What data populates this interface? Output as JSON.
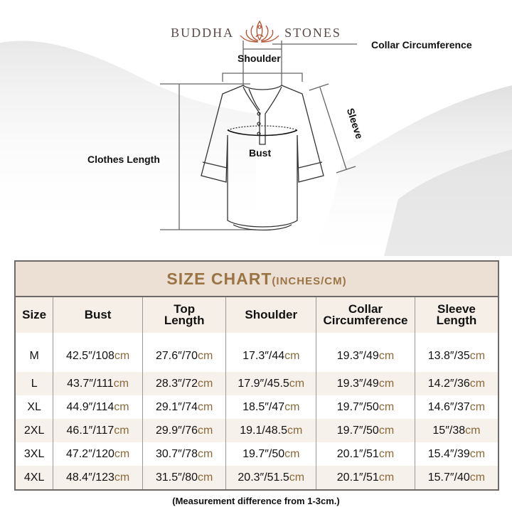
{
  "brand": {
    "left": "BUDDHA",
    "right": "STONES",
    "icon": "lotus-meditation-logo-icon",
    "color": "#b5502f"
  },
  "diagram": {
    "shoulder": "Shoulder",
    "collar": "Collar Circumference",
    "sleeve": "Sleeve",
    "bust": "Bust",
    "clothes_length": "Clothes Length"
  },
  "table": {
    "title": "SIZE CHART",
    "title_unit": "(INCHES/CM)",
    "title_color": "#9a7444",
    "unit_color": "#8a6a3a",
    "headers": [
      [
        "Size",
        ""
      ],
      [
        "Bust",
        ""
      ],
      [
        "Top",
        "Length"
      ],
      [
        "Shoulder",
        ""
      ],
      [
        "Collar",
        "Circumference"
      ],
      [
        "Sleeve",
        "Length"
      ]
    ],
    "rows": [
      {
        "size": "M",
        "cells": [
          [
            "42.5″/108",
            "cm"
          ],
          [
            "27.6″/70",
            "cm"
          ],
          [
            "17.3″/44",
            "cm"
          ],
          [
            "19.3″/49",
            "cm"
          ],
          [
            "13.8″/35",
            "cm"
          ]
        ]
      },
      {
        "size": "L",
        "cells": [
          [
            "43.7″/111",
            "cm"
          ],
          [
            "28.3″/72",
            "cm"
          ],
          [
            "17.9″/45.5",
            "cm"
          ],
          [
            "19.3″/49",
            "cm"
          ],
          [
            "14.2″/36",
            "cm"
          ]
        ]
      },
      {
        "size": "XL",
        "cells": [
          [
            "44.9″/114",
            "cm"
          ],
          [
            "29.1″/74",
            "cm"
          ],
          [
            "18.5″/47",
            "cm"
          ],
          [
            "19.7″/50",
            "cm"
          ],
          [
            "14.6″/37",
            "cm"
          ]
        ]
      },
      {
        "size": "2XL",
        "cells": [
          [
            "46.1″/117",
            "cm"
          ],
          [
            "29.9″/76",
            "cm"
          ],
          [
            "19.1/48.5",
            "cm"
          ],
          [
            "19.7″/50",
            "cm"
          ],
          [
            "15″/38",
            "cm"
          ]
        ]
      },
      {
        "size": "3XL",
        "cells": [
          [
            "47.2″/120",
            "cm"
          ],
          [
            "30.7″/78",
            "cm"
          ],
          [
            "19.7″/50",
            "cm"
          ],
          [
            "20.1″/51",
            "cm"
          ],
          [
            "15.4″/39",
            "cm"
          ]
        ]
      },
      {
        "size": "4XL",
        "cells": [
          [
            "48.4″/123",
            "cm"
          ],
          [
            "31.5″/80",
            "cm"
          ],
          [
            "20.3″/51.5",
            "cm"
          ],
          [
            "20.1″/51",
            "cm"
          ],
          [
            "15.7″/40",
            "cm"
          ]
        ]
      }
    ]
  },
  "note": "(Measurement difference from 1-3cm.)"
}
